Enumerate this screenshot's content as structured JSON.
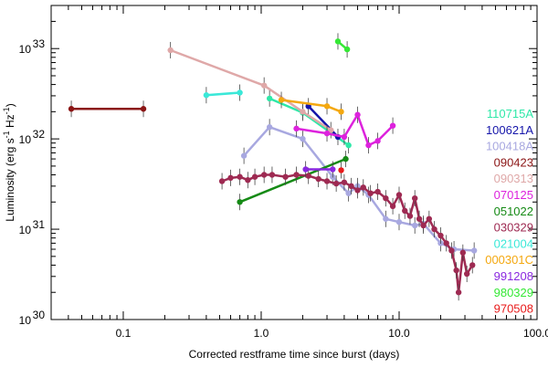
{
  "chart_data": {
    "type": "scatter",
    "title": "",
    "xlabel": "Corrected restframe time since burst (days)",
    "ylabel": "Luminosity (erg s-1 Hz-1)",
    "ylabel_parts": [
      "Luminosity (erg s",
      "-1",
      " Hz",
      "-1",
      ")"
    ],
    "xscale": "log",
    "yscale": "log",
    "xlim": [
      0.03,
      100.0
    ],
    "ylim": [
      1e+30,
      3e+33
    ],
    "x_ticks": [
      {
        "value": 0.1,
        "label": "0.1"
      },
      {
        "value": 1.0,
        "label": "1.0"
      },
      {
        "value": 10.0,
        "label": "10.0"
      },
      {
        "value": 100.0,
        "label": "100.0"
      }
    ],
    "y_ticks": [
      {
        "value": 1e+30,
        "base": "10",
        "exp": "30"
      },
      {
        "value": 1e+31,
        "base": "10",
        "exp": "31"
      },
      {
        "value": 1e+32,
        "base": "10",
        "exp": "32"
      },
      {
        "value": 1e+33,
        "base": "10",
        "exp": "33"
      }
    ],
    "legend_position": "right",
    "series": [
      {
        "name": "110715A",
        "color": "#2ee8a8",
        "points": [
          [
            1.15,
            2.8e+32
          ],
          [
            2.0,
            1.95e+32
          ],
          [
            4.3,
            8.5e+31
          ]
        ]
      },
      {
        "name": "100621A",
        "color": "#1515aa",
        "points": [
          [
            2.2,
            2.3e+32
          ],
          [
            3.6,
            1.05e+32
          ]
        ]
      },
      {
        "name": "100418A",
        "color": "#a8a8e0",
        "points": [
          [
            0.75,
            6.5e+31
          ],
          [
            1.15,
            1.35e+32
          ],
          [
            2.0,
            1e+32
          ],
          [
            3.3,
            3.8e+31
          ],
          [
            4.3,
            2.5e+31
          ],
          [
            5.0,
            3e+31
          ],
          [
            6.0,
            2.4e+31
          ],
          [
            8.0,
            1.3e+31
          ],
          [
            10.0,
            1.2e+31
          ],
          [
            13.0,
            1.1e+31
          ],
          [
            15.0,
            1.15e+31
          ],
          [
            20.0,
            7e+30
          ],
          [
            25.0,
            6e+30
          ],
          [
            35.0,
            5.8e+30
          ]
        ]
      },
      {
        "name": "090423",
        "color": "#8b1515",
        "points": [
          [
            0.042,
            2.15e+32
          ],
          [
            0.14,
            2.15e+32
          ]
        ]
      },
      {
        "name": "090313",
        "color": "#dfa8a8",
        "points": [
          [
            0.22,
            9.6e+32
          ],
          [
            1.05,
            3.9e+32
          ],
          [
            2.0,
            2e+32
          ],
          [
            3.2,
            1.25e+32
          ]
        ]
      },
      {
        "name": "070125",
        "color": "#dd22dd",
        "points": [
          [
            1.8,
            1.3e+32
          ],
          [
            3.0,
            1.15e+32
          ],
          [
            4.0,
            1.05e+32
          ],
          [
            5.0,
            1.85e+32
          ],
          [
            6.0,
            8.5e+31
          ],
          [
            7.0,
            9.5e+31
          ],
          [
            9.0,
            1.4e+32
          ]
        ]
      },
      {
        "name": "051022",
        "color": "#158a15",
        "points": [
          [
            0.7,
            2e+31
          ],
          [
            4.1,
            6e+31
          ]
        ]
      },
      {
        "name": "030329",
        "color": "#9e2a52",
        "points": [
          [
            0.52,
            3.4e+31
          ],
          [
            0.6,
            3.7e+31
          ],
          [
            0.7,
            3.8e+31
          ],
          [
            0.8,
            3.5e+31
          ],
          [
            0.9,
            3.8e+31
          ],
          [
            1.05,
            4e+31
          ],
          [
            1.2,
            4e+31
          ],
          [
            1.5,
            3.8e+31
          ],
          [
            1.8,
            4e+31
          ],
          [
            2.2,
            3.9e+31
          ],
          [
            2.6,
            3.6e+31
          ],
          [
            3.0,
            3.4e+31
          ],
          [
            3.5,
            3.2e+31
          ],
          [
            4.0,
            3.3e+31
          ],
          [
            4.5,
            3e+31
          ],
          [
            5.0,
            2.7e+31
          ],
          [
            5.5,
            2.9e+31
          ],
          [
            6.2,
            2.5e+31
          ],
          [
            7.0,
            2.6e+31
          ],
          [
            8.0,
            2.2e+31
          ],
          [
            9.0,
            1.8e+31
          ],
          [
            10.0,
            2.4e+31
          ],
          [
            11.0,
            1.6e+31
          ],
          [
            12.0,
            1.4e+31
          ],
          [
            13.0,
            2.2e+31
          ],
          [
            14.0,
            1.3e+31
          ],
          [
            15.0,
            1.1e+31
          ],
          [
            16.5,
            1.3e+31
          ],
          [
            18.0,
            1e+31
          ],
          [
            20.0,
            8.5e+30
          ],
          [
            22.0,
            7e+30
          ],
          [
            24.0,
            5.8e+30
          ],
          [
            26.0,
            3.5e+30
          ],
          [
            27.0,
            2e+30
          ],
          [
            29.0,
            5.5e+30
          ],
          [
            31.0,
            3.2e+30
          ],
          [
            34.0,
            4e+30
          ]
        ]
      },
      {
        "name": "021004",
        "color": "#3ae8d8",
        "points": [
          [
            0.4,
            3.05e+32
          ],
          [
            0.7,
            3.25e+32
          ]
        ]
      },
      {
        "name": "000301C",
        "color": "#f4a810",
        "points": [
          [
            1.4,
            2.7e+32
          ],
          [
            3.0,
            2.3e+32
          ],
          [
            3.8,
            2e+32
          ]
        ]
      },
      {
        "name": "991208",
        "color": "#8a28e0",
        "points": [
          [
            2.1,
            4.6e+31
          ],
          [
            3.3,
            4.6e+31
          ]
        ]
      },
      {
        "name": "980329",
        "color": "#35e835",
        "points": [
          [
            3.6,
            1.2e+33
          ],
          [
            4.2,
            9.8e+32
          ]
        ]
      },
      {
        "name": "970508",
        "color": "#e81a1a",
        "points": [
          [
            3.8,
            4.5e+31
          ]
        ]
      }
    ]
  }
}
